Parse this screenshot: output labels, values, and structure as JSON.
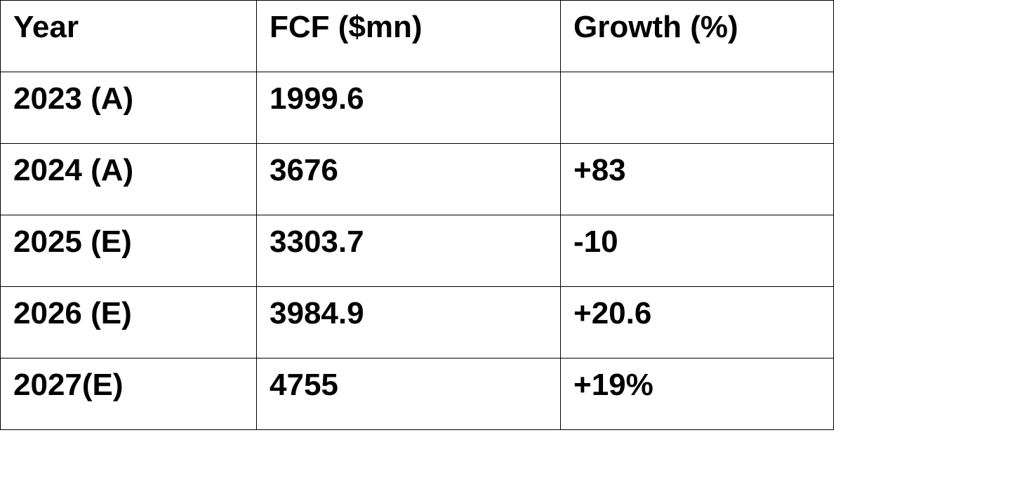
{
  "table": {
    "header": [
      "Year",
      "FCF ($mn)",
      "Growth (%)"
    ],
    "rows": [
      [
        "2023 (A)",
        "1999.6",
        null
      ],
      [
        "2024 (A)",
        "3676",
        "+83"
      ],
      [
        "2025 (E)",
        "3303.7",
        "-10"
      ],
      [
        "2026 (E)",
        "3984.9",
        "+20.6"
      ],
      [
        "2027(E)",
        "4755",
        "+19%"
      ]
    ]
  }
}
